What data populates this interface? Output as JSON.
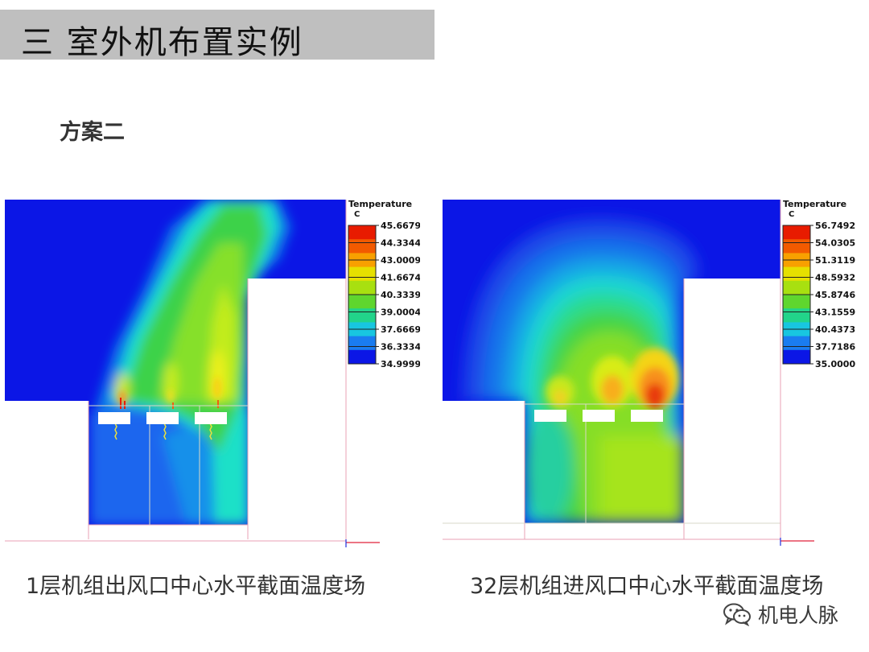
{
  "header": {
    "title": "三 室外机布置实例",
    "subtitle": "方案二"
  },
  "panels": [
    {
      "legend_title": "Temperature",
      "legend_unit": "C",
      "legend_values": [
        "45.6679",
        "44.3344",
        "43.0009",
        "41.6674",
        "40.3339",
        "39.0004",
        "37.6669",
        "36.3334",
        "34.9999"
      ],
      "caption": "1层机组出风口中心水平截面温度场"
    },
    {
      "legend_title": "Temperature",
      "legend_unit": "C",
      "legend_values": [
        "56.7492",
        "54.0305",
        "51.3119",
        "48.5932",
        "45.8746",
        "43.1559",
        "40.4373",
        "37.7186",
        "35.0000"
      ],
      "caption": "32层机组进风口中心水平截面温度场"
    }
  ],
  "colors": {
    "title_bar": "#bfbfbf",
    "cold": "#0b16e6",
    "hot": "#e81b00"
  },
  "watermark": {
    "text": "机电人脉",
    "icon": "wechat-icon"
  }
}
